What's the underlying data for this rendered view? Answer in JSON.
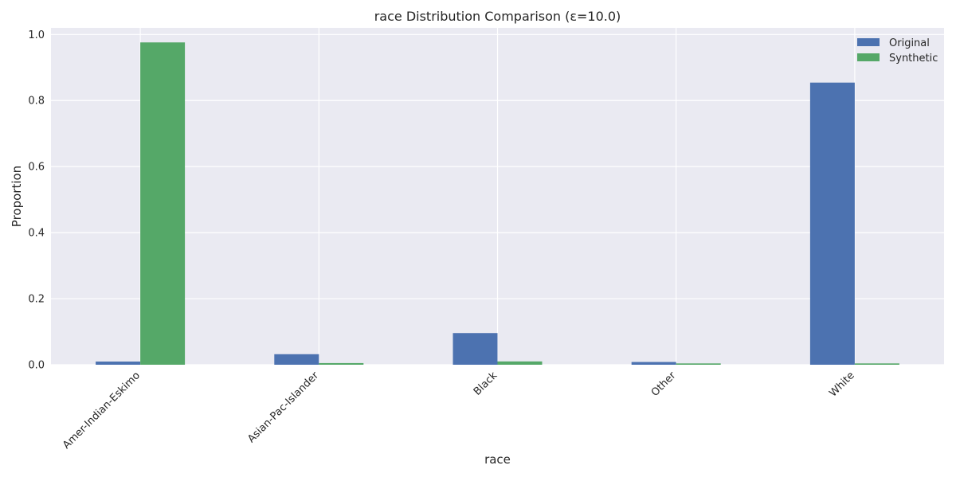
{
  "chart_data": {
    "type": "bar",
    "title": "race Distribution Comparison (ε=10.0)",
    "xlabel": "race",
    "ylabel": "Proportion",
    "categories": [
      "Amer-Indian-Eskimo",
      "Asian-Pac-Islander",
      "Black",
      "Other",
      "White"
    ],
    "series": [
      {
        "name": "Original",
        "color": "#4c72b0",
        "values": [
          0.0096,
          0.0319,
          0.0959,
          0.0083,
          0.8543
        ]
      },
      {
        "name": "Synthetic",
        "color": "#55a868",
        "values": [
          0.976,
          0.005,
          0.01,
          0.004,
          0.004
        ]
      }
    ],
    "ylim": [
      0,
      1.02
    ],
    "yticks": [
      "0.0",
      "0.2",
      "0.4",
      "0.6",
      "0.8",
      "1.0"
    ],
    "grid": true,
    "legend_position": "top-right",
    "colors": {
      "background": "#eaeaf2",
      "grid": "#ffffff"
    }
  }
}
